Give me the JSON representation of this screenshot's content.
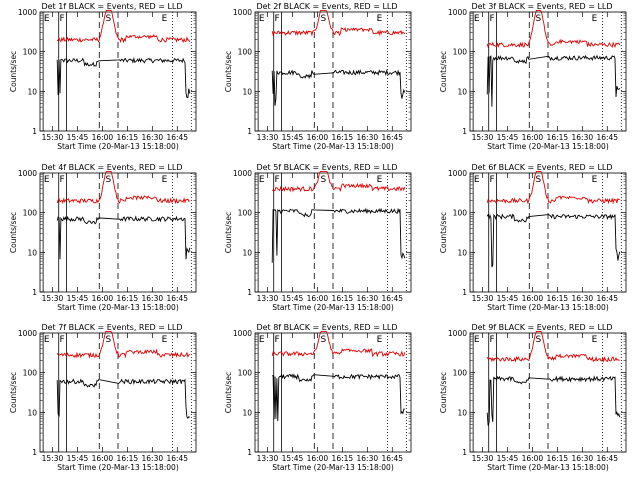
{
  "colors": {
    "events": "#000000",
    "lld": "#e00000",
    "axis": "#000000",
    "background": "#ffffff"
  },
  "common": {
    "xlabel": "Start Time (20-Mar-13 15:18:00)",
    "ylabel": "Counts/sec",
    "yticks": [
      "1",
      "10",
      "100",
      "1000"
    ],
    "xticks_a": [
      "15:30",
      "15:45",
      "16:00",
      "16:15",
      "16:30",
      "16:45"
    ],
    "xticks_b": [
      "13:30",
      "15:45",
      "16:00",
      "16:15",
      "16:30",
      "16:45"
    ],
    "marker_labels": [
      "E",
      "F",
      "S",
      "E"
    ]
  },
  "chart_data": [
    {
      "type": "line",
      "title": "Det 1f BLACK = Events, RED = LLD",
      "xtick_set": "a",
      "yscale": "log",
      "ylim": [
        1,
        1000
      ],
      "series": [
        {
          "name": "Events",
          "color": "#000000",
          "level": 60
        },
        {
          "name": "LLD",
          "color": "#e00000",
          "level": 200
        }
      ]
    },
    {
      "type": "line",
      "title": "Det 2f BLACK = Events, RED = LLD",
      "xtick_set": "b",
      "yscale": "log",
      "ylim": [
        1,
        1000
      ],
      "series": [
        {
          "name": "Events",
          "color": "#000000",
          "level": 30
        },
        {
          "name": "LLD",
          "color": "#e00000",
          "level": 300
        }
      ]
    },
    {
      "type": "line",
      "title": "Det 3f BLACK = Events, RED = LLD",
      "xtick_set": "a",
      "yscale": "log",
      "ylim": [
        1,
        1000
      ],
      "series": [
        {
          "name": "Events",
          "color": "#000000",
          "level": 70
        },
        {
          "name": "LLD",
          "color": "#e00000",
          "level": 150
        }
      ]
    },
    {
      "type": "line",
      "title": "Det 4f BLACK = Events, RED = LLD",
      "xtick_set": "a",
      "yscale": "log",
      "ylim": [
        1,
        1000
      ],
      "series": [
        {
          "name": "Events",
          "color": "#000000",
          "level": 70
        },
        {
          "name": "LLD",
          "color": "#e00000",
          "level": 200
        }
      ]
    },
    {
      "type": "line",
      "title": "Det 5f BLACK = Events, RED = LLD",
      "xtick_set": "b",
      "yscale": "log",
      "ylim": [
        1,
        1000
      ],
      "series": [
        {
          "name": "Events",
          "color": "#000000",
          "level": 110
        },
        {
          "name": "LLD",
          "color": "#e00000",
          "level": 400
        }
      ]
    },
    {
      "type": "line",
      "title": "Det 6f BLACK = Events, RED = LLD",
      "xtick_set": "a",
      "yscale": "log",
      "ylim": [
        1,
        1000
      ],
      "series": [
        {
          "name": "Events",
          "color": "#000000",
          "level": 80
        },
        {
          "name": "LLD",
          "color": "#e00000",
          "level": 200
        }
      ]
    },
    {
      "type": "line",
      "title": "Det 7f BLACK = Events, RED = LLD",
      "xtick_set": "a",
      "yscale": "log",
      "ylim": [
        1,
        1000
      ],
      "series": [
        {
          "name": "Events",
          "color": "#000000",
          "level": 60
        },
        {
          "name": "LLD",
          "color": "#e00000",
          "level": 280
        }
      ]
    },
    {
      "type": "line",
      "title": "Det 8f BLACK = Events, RED = LLD",
      "xtick_set": "b",
      "yscale": "log",
      "ylim": [
        1,
        1000
      ],
      "series": [
        {
          "name": "Events",
          "color": "#000000",
          "level": 80
        },
        {
          "name": "LLD",
          "color": "#e00000",
          "level": 300
        }
      ]
    },
    {
      "type": "line",
      "title": "Det 9f BLACK = Events, RED = LLD",
      "xtick_set": "a",
      "yscale": "log",
      "ylim": [
        1,
        1000
      ],
      "series": [
        {
          "name": "Events",
          "color": "#000000",
          "level": 70
        },
        {
          "name": "LLD",
          "color": "#e00000",
          "level": 220
        }
      ]
    }
  ]
}
